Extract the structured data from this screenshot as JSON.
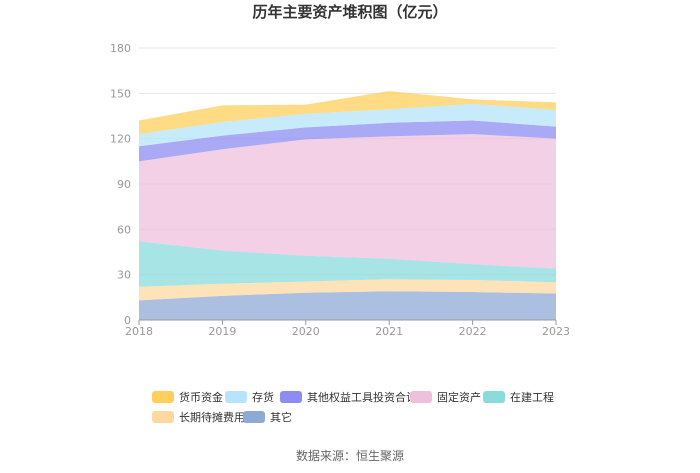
{
  "chart_data": {
    "type": "area",
    "stacked": true,
    "title": "历年主要资产堆积图（亿元）",
    "x": [
      "2018",
      "2019",
      "2020",
      "2021",
      "2022",
      "2023"
    ],
    "yticks": [
      "0",
      "30",
      "60",
      "90",
      "120",
      "150",
      "180"
    ],
    "ylim": [
      0,
      180
    ],
    "grid": true,
    "legend_position": "bottom",
    "series": [
      {
        "name": "其它",
        "color": "#8fa9d6",
        "values": [
          13,
          16,
          18,
          19,
          18.5,
          17.5
        ]
      },
      {
        "name": "长期待摊费用",
        "color": "#fdd9a0",
        "values": [
          9,
          8,
          7.5,
          8,
          8,
          7.5
        ]
      },
      {
        "name": "在建工程",
        "color": "#8adbdc",
        "values": [
          30,
          22,
          17,
          13.5,
          10.5,
          9
        ]
      },
      {
        "name": "固定资产",
        "color": "#efc0dc",
        "values": [
          53,
          67,
          77,
          81,
          86,
          86
        ]
      },
      {
        "name": "其他权益工具投资合计",
        "color": "#8c8cf2",
        "values": [
          10,
          9,
          8,
          9,
          9,
          8
        ]
      },
      {
        "name": "存货",
        "color": "#b5e4fb",
        "values": [
          8,
          9,
          9,
          9,
          11,
          11
        ]
      },
      {
        "name": "货币资金",
        "color": "#fecf5b",
        "values": [
          9,
          11,
          6,
          12,
          3,
          5
        ]
      }
    ],
    "legend_order": [
      "货币资金",
      "存货",
      "其他权益工具投资合计",
      "固定资产",
      "在建工程",
      "长期待摊费用",
      "其它"
    ]
  },
  "source": "数据来源：恒生聚源"
}
